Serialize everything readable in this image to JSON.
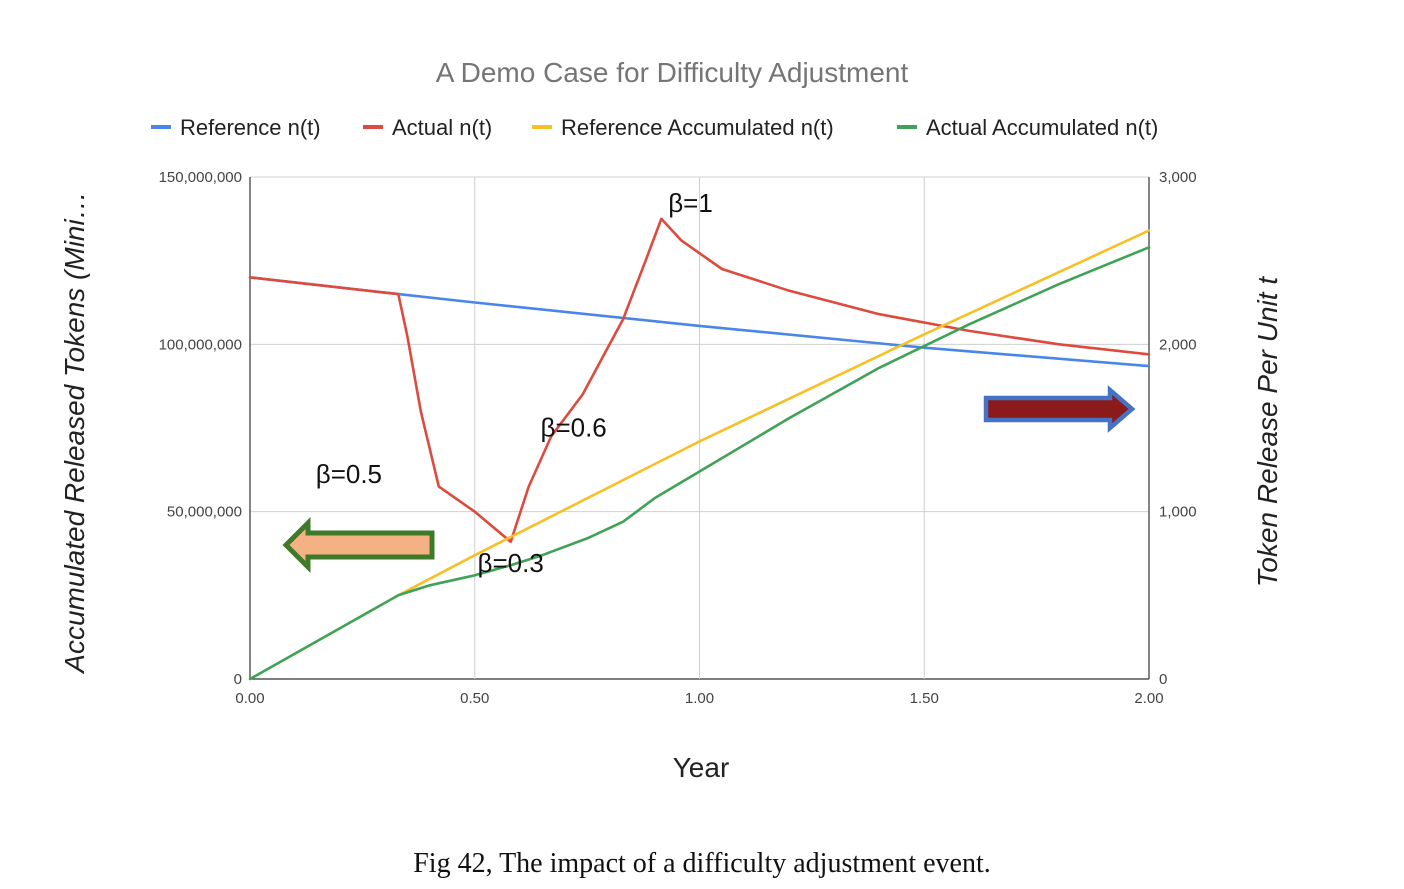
{
  "caption": "Fig 42, The impact of a difficulty adjustment event.",
  "chart_data": {
    "type": "line",
    "title": "A Demo Case for Difficulty Adjustment",
    "xlabel": "Year",
    "ylabel_left": "Accumulated Released Tokens (Mini…",
    "ylabel_right": "Token Release Per Unit t",
    "xlim": [
      0,
      2
    ],
    "ylim_left": [
      0,
      150000000
    ],
    "ylim_right": [
      0,
      3000
    ],
    "x_ticks": [
      "0.00",
      "0.50",
      "1.00",
      "1.50",
      "2.00"
    ],
    "x_tick_values": [
      0,
      0.5,
      1,
      1.5,
      2
    ],
    "y_left_ticks": [
      "0",
      "50,000,000",
      "100,000,000",
      "150,000,000"
    ],
    "y_left_tick_values": [
      0,
      50000000,
      100000000,
      150000000
    ],
    "y_right_ticks": [
      "0",
      "1,000",
      "2,000",
      "3,000"
    ],
    "y_right_tick_values": [
      0,
      1000,
      2000,
      3000
    ],
    "grid": true,
    "legend_position": "top",
    "series": [
      {
        "name": "Reference n(t)",
        "color": "#4a86e8",
        "axis": "right",
        "x": [
          0,
          0.33,
          0.5,
          1.0,
          1.5,
          2.0
        ],
        "y": [
          2400,
          2300,
          2250,
          2110,
          1980,
          1870
        ]
      },
      {
        "name": "Actual n(t)",
        "color": "#dd4b3e",
        "axis": "right",
        "x": [
          0,
          0.33,
          0.35,
          0.38,
          0.42,
          0.5,
          0.58,
          0.62,
          0.67,
          0.74,
          0.8,
          0.83,
          0.88,
          0.915,
          0.96,
          1.05,
          1.2,
          1.4,
          1.6,
          1.8,
          2.0
        ],
        "y": [
          2400,
          2300,
          2050,
          1600,
          1150,
          1000,
          820,
          1150,
          1450,
          1700,
          2000,
          2150,
          2500,
          2750,
          2620,
          2450,
          2320,
          2180,
          2080,
          2000,
          1940
        ]
      },
      {
        "name": "Reference Accumulated n(t)",
        "color": "#f6c026",
        "axis": "left",
        "x": [
          0.33,
          0.5,
          1.0,
          1.5,
          2.0
        ],
        "y": [
          25000000,
          37000000,
          71000000,
          103000000,
          134000000
        ]
      },
      {
        "name": "Actual Accumulated n(t)",
        "color": "#3fa355",
        "axis": "left",
        "x": [
          0,
          0.33,
          0.4,
          0.5,
          0.58,
          0.65,
          0.75,
          0.83,
          0.9,
          1.0,
          1.2,
          1.4,
          1.6,
          1.8,
          2.0
        ],
        "y": [
          0,
          25000000,
          28000000,
          31000000,
          34000000,
          37000000,
          42000000,
          47000000,
          54000000,
          62000000,
          78000000,
          93000000,
          106000000,
          118000000,
          129000000
        ]
      }
    ],
    "annotations": [
      {
        "text": "β=1",
        "x": 0.98,
        "y_right": 2790
      },
      {
        "text": "β=0.6",
        "x": 0.72,
        "y_right": 1450
      },
      {
        "text": "β=0.5",
        "x": 0.22,
        "y_right": 1170
      },
      {
        "text": "β=0.3",
        "x": 0.58,
        "y_right": 640
      }
    ],
    "arrows": [
      {
        "name": "left-axis-arrow",
        "direction": "left",
        "fill": "#f4b183",
        "stroke": "#3f7a2a"
      },
      {
        "name": "right-axis-arrow",
        "direction": "right",
        "fill": "#8b1a1a",
        "stroke": "#4472c4"
      }
    ]
  }
}
